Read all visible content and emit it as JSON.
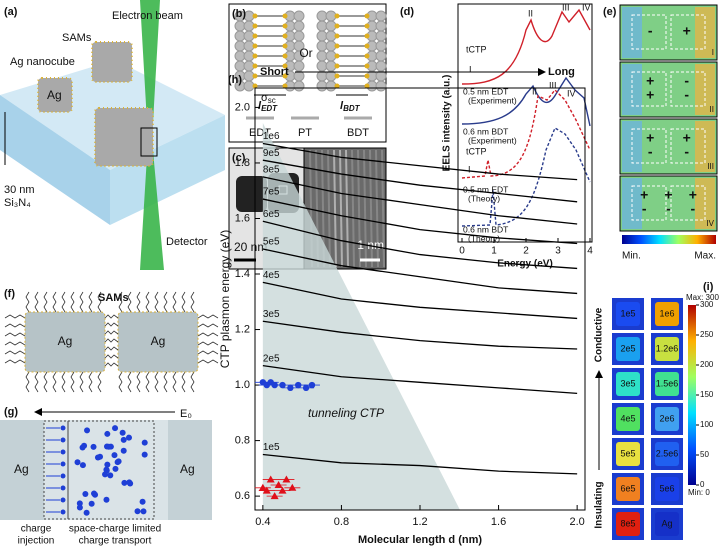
{
  "panels": {
    "a": {
      "label": "(a)",
      "sams": "SAMs",
      "beam": "Electron beam",
      "nanocube": "Ag nanocube",
      "ag": "Ag",
      "thickness": "30 nm",
      "substrate": "Si₃N₄",
      "detector": "Detector"
    },
    "b": {
      "label": "(b)",
      "or": "Or",
      "l_edt": "l",
      "l_edt_sub": "EDT",
      "l_bdt": "l",
      "l_bdt_sub": "BDT",
      "molecules": [
        "EDT",
        "PT",
        "BDT"
      ]
    },
    "c": {
      "label": "(c)",
      "scale_left": "20 nm",
      "scale_right": "1 nm"
    },
    "d": {
      "label": "(d)",
      "xlabel": "Energy (eV)",
      "ylabel": "EELS intensity (a.u.)",
      "xlim": [
        0,
        4
      ],
      "xticks": [
        0,
        1,
        2,
        3,
        4
      ],
      "tctp": [
        "tCTP",
        "tCTP"
      ],
      "top_peaks": [
        "I",
        "II",
        "III",
        "IV"
      ],
      "theory_peaks": [
        "I",
        "II",
        "III",
        "IV"
      ],
      "curve_labels": [
        [
          "0.5 nm EDT",
          "(Experiment)"
        ],
        [
          "0.6 nm BDT",
          "(Experiment)"
        ],
        [
          "0.5 nm EDT",
          "(Theory)"
        ],
        [
          "0.6 nm BDT",
          "(Theory)"
        ]
      ]
    },
    "e": {
      "label": "(e)",
      "maps": [
        {
          "numeral": "I",
          "signs": [
            "-",
            "+"
          ]
        },
        {
          "numeral": "II",
          "signs": [
            "+",
            "-",
            "+",
            "-"
          ]
        },
        {
          "numeral": "III",
          "signs": [
            "+",
            "+",
            "-",
            "-"
          ]
        },
        {
          "numeral": "IV",
          "signs": [
            "+",
            "+",
            "+",
            "-",
            "-",
            "-"
          ]
        }
      ],
      "min": "Min.",
      "max": "Max."
    },
    "f": {
      "label": "(f)",
      "sams": "SAMs",
      "ag": [
        "Ag",
        "Ag"
      ]
    },
    "g": {
      "label": "(g)",
      "field": "E₀",
      "ag": [
        "Ag",
        "Ag"
      ],
      "captions": [
        [
          "charge",
          "injection"
        ],
        [
          "space-charge limited",
          "charge transport"
        ]
      ]
    },
    "h": {
      "type": "line",
      "label": "(h)",
      "short": "Short",
      "long": "Long",
      "sigma": "σ",
      "sigma_sub": "sc",
      "region_label": "tunneling CTP",
      "xlabel": "Molecular length d (nm)",
      "ylabel": "CTP plasmon energy (eV)",
      "xlim": [
        0.36,
        2.04
      ],
      "ylim": [
        0.55,
        2.07
      ],
      "xticks": [
        0.4,
        0.8,
        1.2,
        1.6,
        {
          "value": 2,
          "label": "2.0"
        }
      ],
      "yticks": [
        0.6,
        0.8,
        {
          "value": 1,
          "label": "1.0"
        },
        1.2,
        1.4,
        1.6,
        1.8,
        {
          "value": 2,
          "label": "2.0"
        }
      ],
      "line_color": "#000000",
      "x": [
        0.4,
        0.8,
        1.2,
        1.6,
        2
      ],
      "series": [
        {
          "name": "1e6",
          "values": [
            1.87,
            1.82,
            1.79,
            1.76,
            1.74
          ]
        },
        {
          "name": "9e5",
          "values": [
            1.81,
            1.76,
            1.72,
            1.69,
            1.66
          ]
        },
        {
          "name": "8e5",
          "values": [
            1.75,
            1.69,
            1.65,
            1.61,
            1.58
          ]
        },
        {
          "name": "7e5",
          "values": [
            1.67,
            1.61,
            1.56,
            1.53,
            1.51
          ]
        },
        {
          "name": "6e5",
          "values": [
            1.59,
            1.52,
            1.47,
            1.44,
            1.42
          ]
        },
        {
          "name": "5e5",
          "values": [
            1.49,
            1.43,
            1.39,
            1.35,
            1.33
          ]
        },
        {
          "name": "4e5",
          "values": [
            1.37,
            1.31,
            1.28,
            1.26,
            1.24
          ]
        },
        {
          "name": "3e5",
          "values": [
            1.23,
            1.19,
            1.16,
            1.14,
            1.13
          ]
        },
        {
          "name": "2e5",
          "values": [
            1.07,
            1.03,
            1.01,
            0.99,
            0.97
          ]
        },
        {
          "name": "1e5",
          "values": [
            0.75,
            0.72,
            0.71,
            0.69,
            0.68
          ]
        }
      ],
      "points": [
        {
          "color": "#1f3fd6",
          "marker": "circle",
          "x": [
            0.4,
            0.42,
            0.44,
            0.46,
            0.5,
            0.54,
            0.58,
            0.62,
            0.65
          ],
          "y": [
            1.01,
            1.0,
            1.01,
            1.0,
            1.0,
            0.99,
            1.0,
            0.99,
            1.0
          ]
        },
        {
          "color": "#e0101a",
          "marker": "triangle",
          "x": [
            0.4,
            0.42,
            0.44,
            0.46,
            0.48,
            0.5,
            0.52,
            0.55
          ],
          "y": [
            0.63,
            0.62,
            0.66,
            0.6,
            0.64,
            0.62,
            0.66,
            0.63
          ]
        }
      ]
    },
    "i": {
      "label": "(i)",
      "left": {
        "labels": [
          "1e5",
          "2e5",
          "3e5",
          "4e5",
          "5e5",
          "6e5",
          "8e5"
        ],
        "colors": [
          "#1a4bf0",
          "#1aa0f0",
          "#2ee0c8",
          "#50e060",
          "#e8e040",
          "#f08020",
          "#e02010"
        ]
      },
      "right": {
        "labels": [
          "1e6",
          "1.2e6",
          "1.5e6",
          "2e6",
          "2.5e6",
          "5e6",
          "Ag"
        ],
        "colors": [
          "#f0a000",
          "#c8e040",
          "#40e090",
          "#40a0f0",
          "#2060f0",
          "#1a40e8",
          "#1530c8"
        ]
      },
      "colorbar": {
        "lim": [
          0,
          300
        ],
        "ticks": [
          0,
          50,
          100,
          150,
          200,
          250,
          300
        ],
        "max": "Max: 300",
        "min": "Min: 0"
      },
      "conductive": "Conductive",
      "insulating": "Insulating"
    }
  }
}
